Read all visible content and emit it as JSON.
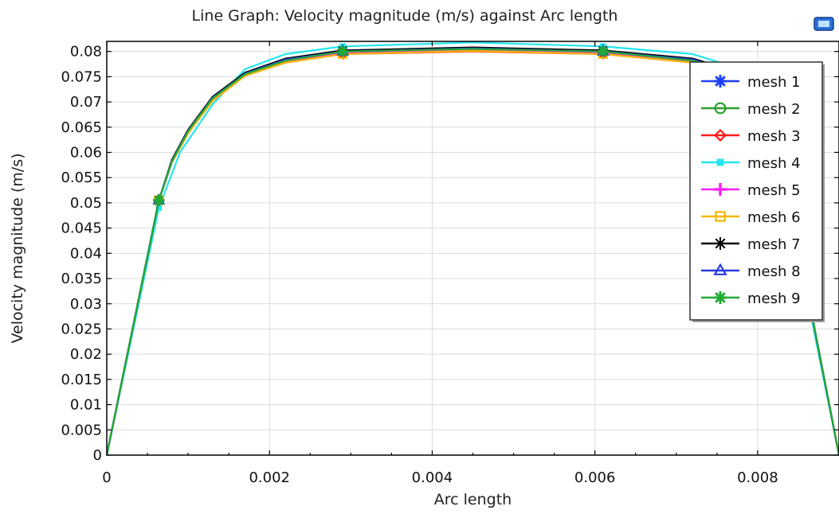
{
  "window": {
    "title": "Line Graph: Velocity magnitude (m/s) against Arc length"
  },
  "toolbar": {
    "icon": "plot-window-icon"
  },
  "chart_data": {
    "type": "line",
    "title": "Line Graph: Velocity magnitude (m/s) against Arc length",
    "xlabel": "Arc length",
    "ylabel": "Velocity magnitude (m/s)",
    "xlim": [
      0,
      0.009
    ],
    "ylim": [
      0,
      0.082
    ],
    "xticks": [
      0,
      0.002,
      0.004,
      0.006,
      0.008
    ],
    "xtick_labels": [
      "0",
      "0.002",
      "0.004",
      "0.006",
      "0.008"
    ],
    "yticks": [
      0,
      0.005,
      0.01,
      0.015,
      0.02,
      0.025,
      0.03,
      0.035,
      0.04,
      0.045,
      0.05,
      0.055,
      0.06,
      0.065,
      0.07,
      0.075,
      0.08
    ],
    "ytick_labels": [
      "0",
      "0.005",
      "0.01",
      "0.015",
      "0.02",
      "0.025",
      "0.03",
      "0.035",
      "0.04",
      "0.045",
      "0.05",
      "0.055",
      "0.06",
      "0.065",
      "0.07",
      "0.075",
      "0.08"
    ],
    "grid": true,
    "legend_position": "top-right",
    "series": [
      {
        "name": "mesh 1",
        "color": "#1f3fff",
        "marker": "star",
        "x": [
          0,
          0.00064,
          0.0008,
          0.001,
          0.0013,
          0.0017,
          0.0022,
          0.0029,
          0.0045,
          0.0061,
          0.0072,
          0.0078,
          0.0084,
          0.0087,
          0.009
        ],
        "y": [
          0,
          0.0505,
          0.058,
          0.064,
          0.0705,
          0.0755,
          0.0782,
          0.0799,
          0.0805,
          0.0799,
          0.0782,
          0.0755,
          0.0505,
          0.025,
          0
        ]
      },
      {
        "name": "mesh 2",
        "color": "#2ca02c",
        "marker": "circle",
        "x": [
          0,
          0.00064,
          0.0008,
          0.001,
          0.0013,
          0.0017,
          0.0022,
          0.0029,
          0.0045,
          0.0061,
          0.0072,
          0.0078,
          0.0084,
          0.0087,
          0.009
        ],
        "y": [
          0,
          0.0505,
          0.058,
          0.064,
          0.0705,
          0.0755,
          0.078,
          0.0797,
          0.0803,
          0.0797,
          0.078,
          0.0755,
          0.0505,
          0.025,
          0
        ]
      },
      {
        "name": "mesh 3",
        "color": "#ff1a1a",
        "marker": "diamond",
        "x": [
          0,
          0.00064,
          0.0008,
          0.001,
          0.0013,
          0.0017,
          0.0022,
          0.0029,
          0.0045,
          0.0061,
          0.0072,
          0.0078,
          0.0084,
          0.0087,
          0.009
        ],
        "y": [
          0,
          0.0505,
          0.058,
          0.0638,
          0.0703,
          0.0752,
          0.0778,
          0.0795,
          0.08,
          0.0795,
          0.0778,
          0.0752,
          0.0505,
          0.025,
          0
        ]
      },
      {
        "name": "mesh 4",
        "color": "#22e6f0",
        "marker": "square",
        "x": [
          0,
          0.00064,
          0.0009,
          0.0013,
          0.0017,
          0.0022,
          0.0029,
          0.0045,
          0.0061,
          0.0072,
          0.0078,
          0.0084,
          0.0087,
          0.009
        ],
        "y": [
          0,
          0.049,
          0.06,
          0.0695,
          0.0765,
          0.0795,
          0.081,
          0.0818,
          0.081,
          0.0795,
          0.0765,
          0.049,
          0.024,
          0
        ]
      },
      {
        "name": "mesh 5",
        "color": "#ff22ff",
        "marker": "plus",
        "x": [
          0,
          0.00064,
          0.0008,
          0.001,
          0.0013,
          0.0017,
          0.0022,
          0.0029,
          0.0045,
          0.0061,
          0.0072,
          0.0078,
          0.0084,
          0.0087,
          0.009
        ],
        "y": [
          0,
          0.0505,
          0.058,
          0.0638,
          0.0702,
          0.0752,
          0.0779,
          0.0797,
          0.0803,
          0.0797,
          0.0779,
          0.0752,
          0.0505,
          0.025,
          0
        ]
      },
      {
        "name": "mesh 6",
        "color": "#f5b800",
        "marker": "square-open",
        "x": [
          0,
          0.00064,
          0.0008,
          0.001,
          0.0013,
          0.0017,
          0.0022,
          0.0029,
          0.0045,
          0.0061,
          0.0072,
          0.0078,
          0.0084,
          0.0087,
          0.009
        ],
        "y": [
          0,
          0.0505,
          0.058,
          0.0638,
          0.0702,
          0.0752,
          0.0778,
          0.0795,
          0.0801,
          0.0795,
          0.0778,
          0.0752,
          0.0505,
          0.025,
          0
        ]
      },
      {
        "name": "mesh 7",
        "color": "#000000",
        "marker": "star-open",
        "x": [
          0,
          0.00064,
          0.0008,
          0.001,
          0.0013,
          0.0017,
          0.0022,
          0.0029,
          0.0045,
          0.0061,
          0.0072,
          0.0078,
          0.0084,
          0.0087,
          0.009
        ],
        "y": [
          0,
          0.0505,
          0.0585,
          0.0645,
          0.071,
          0.0758,
          0.0786,
          0.0802,
          0.0808,
          0.0802,
          0.0786,
          0.0758,
          0.0505,
          0.025,
          0
        ]
      },
      {
        "name": "mesh 8",
        "color": "#2a3ae0",
        "marker": "triangle",
        "x": [
          0,
          0.00064,
          0.0008,
          0.001,
          0.0013,
          0.0017,
          0.0022,
          0.0029,
          0.0045,
          0.0061,
          0.0072,
          0.0078,
          0.0084,
          0.0087,
          0.009
        ],
        "y": [
          0,
          0.0505,
          0.0583,
          0.0643,
          0.0708,
          0.0756,
          0.0784,
          0.08,
          0.0806,
          0.08,
          0.0784,
          0.0756,
          0.0505,
          0.025,
          0
        ]
      },
      {
        "name": "mesh 9",
        "color": "#22aa33",
        "marker": "star",
        "x": [
          0,
          0.00064,
          0.0008,
          0.001,
          0.0013,
          0.0017,
          0.0022,
          0.0029,
          0.0045,
          0.0061,
          0.0072,
          0.0078,
          0.0084,
          0.0087,
          0.009
        ],
        "y": [
          0,
          0.0505,
          0.0582,
          0.0642,
          0.0707,
          0.0755,
          0.0782,
          0.08,
          0.0805,
          0.08,
          0.0782,
          0.0755,
          0.0505,
          0.025,
          0
        ]
      }
    ]
  }
}
